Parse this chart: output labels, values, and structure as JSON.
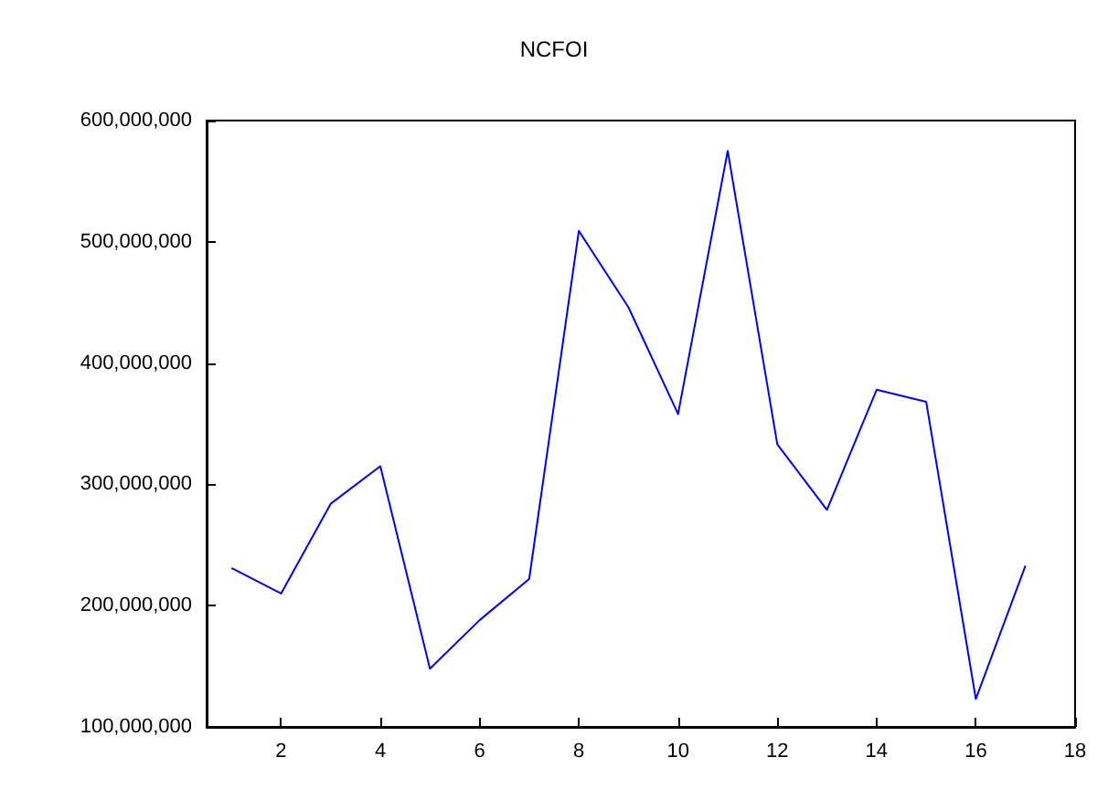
{
  "chart_data": {
    "type": "line",
    "title": "NCFOI",
    "x": [
      1,
      2,
      3,
      4,
      5,
      6,
      7,
      8,
      9,
      10,
      11,
      12,
      13,
      14,
      15,
      16,
      17
    ],
    "series": [
      {
        "color": "#0000ff",
        "values": [
          231000000,
          210000000,
          284000000,
          315000000,
          148000000,
          188000000,
          222000000,
          509000000,
          446000000,
          358000000,
          575000000,
          333000000,
          279000000,
          378000000,
          368000000,
          123000000,
          233000000
        ]
      }
    ],
    "xlim": [
      0.5,
      18
    ],
    "xticks": [
      2,
      4,
      6,
      8,
      10,
      12,
      14,
      16,
      18
    ],
    "ylim": [
      100000000,
      600000000
    ],
    "yticks": [
      {
        "value": 100000000,
        "label": "100,000,000"
      },
      {
        "value": 200000000,
        "label": "200,000,000"
      },
      {
        "value": 300000000,
        "label": "300,000,000"
      },
      {
        "value": 400000000,
        "label": "400,000,000"
      },
      {
        "value": 500000000,
        "label": "500,000,000"
      },
      {
        "value": 600000000,
        "label": "600,000,000"
      }
    ],
    "grid": false,
    "marker": "none",
    "line_style": "solid"
  }
}
